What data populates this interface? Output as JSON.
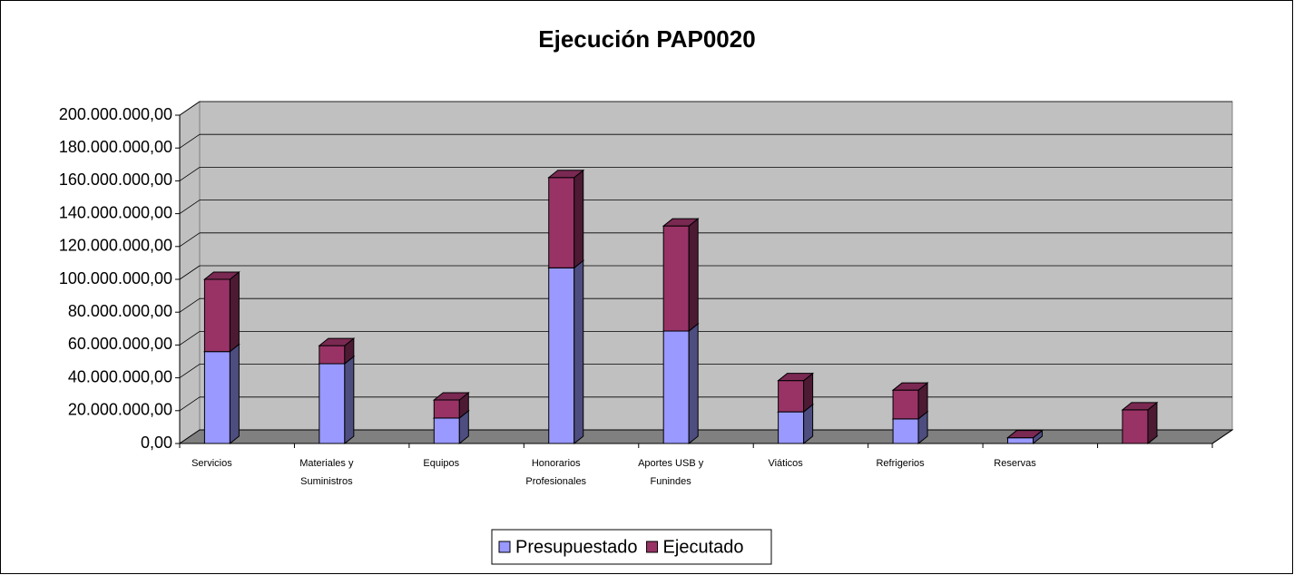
{
  "chart_data": {
    "type": "bar3d_stacked",
    "title": "Ejecución PAP0020",
    "categories": [
      "Servicios",
      "Materiales y Suministros",
      "Equipos",
      "Honorarios Profesionales",
      "Aportes USB y Funindes",
      "Viáticos",
      "Refrigerios",
      "Reservas",
      null
    ],
    "series": [
      {
        "name": "Presupuestado",
        "color": "#9999ff",
        "values": [
          56000000,
          48600000,
          15500000,
          107000000,
          68500000,
          19300000,
          15000000,
          3500000,
          0
        ]
      },
      {
        "name": "Ejecutado",
        "color": "#993366",
        "values": [
          44000000,
          11000000,
          11000000,
          55000000,
          64000000,
          19000000,
          17500000,
          0,
          20500000
        ]
      }
    ],
    "ylim": [
      0,
      200000000
    ],
    "yticks": [
      {
        "value": 0,
        "label": "0,00"
      },
      {
        "value": 20000000,
        "label": "20.000.000,00"
      },
      {
        "value": 40000000,
        "label": "40.000.000,00"
      },
      {
        "value": 60000000,
        "label": "60.000.000,00"
      },
      {
        "value": 80000000,
        "label": "80.000.000,00"
      },
      {
        "value": 100000000,
        "label": "100.000.000,00"
      },
      {
        "value": 120000000,
        "label": "120.000.000,00"
      },
      {
        "value": 140000000,
        "label": "140.000.000,00"
      },
      {
        "value": 160000000,
        "label": "160.000.000,00"
      },
      {
        "value": 180000000,
        "label": "180.000.000,00"
      },
      {
        "value": 200000000,
        "label": "200.000.000,00"
      }
    ],
    "grid": true,
    "legend": "bottom"
  }
}
